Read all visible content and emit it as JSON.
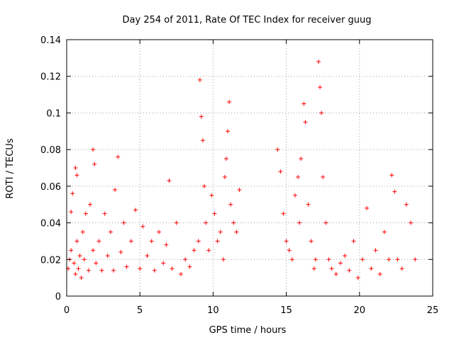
{
  "chart_data": {
    "type": "scatter",
    "title": "Day 254 of 2011, Rate Of TEC Index for receiver guug",
    "xlabel": "GPS time / hours",
    "ylabel": "ROTI / TECUs",
    "xlim": [
      0,
      25
    ],
    "ylim": [
      0,
      0.14
    ],
    "xticks": [
      0,
      5,
      10,
      15,
      20,
      25
    ],
    "xtick_labels": [
      "0",
      "5",
      "10",
      "15",
      "20",
      "25"
    ],
    "yticks": [
      0,
      0.02,
      0.04,
      0.06,
      0.08,
      0.1,
      0.12,
      0.14
    ],
    "ytick_labels": [
      "0",
      "0.02",
      "0.04",
      "0.06",
      "0.08",
      "0.1",
      "0.12",
      "0.14"
    ],
    "grid": true,
    "marker": "+",
    "color": "#ff0000",
    "series": [
      {
        "x": [
          0.1,
          0.2,
          0.3,
          0.3,
          0.4,
          0.5,
          0.6,
          0.6,
          0.7,
          0.7,
          0.8,
          0.9,
          1.0,
          1.1,
          1.2,
          1.3,
          1.5,
          1.6,
          1.8,
          1.8,
          1.9,
          2.0,
          2.2,
          2.4,
          2.6,
          2.8,
          3.0,
          3.2,
          3.3,
          3.5,
          3.7,
          3.9,
          4.1,
          4.4,
          4.7,
          5.0,
          5.2,
          5.5,
          5.8,
          6.0,
          6.3,
          6.6,
          6.8,
          7.0,
          7.2,
          7.5,
          7.8,
          8.1,
          8.4,
          8.7,
          9.0,
          9.1,
          9.2,
          9.3,
          9.4,
          9.5,
          9.7,
          9.9,
          10.1,
          10.3,
          10.5,
          10.7,
          10.8,
          10.9,
          11.0,
          11.1,
          11.2,
          11.4,
          11.6,
          11.8
        ],
        "y": [
          0.015,
          0.02,
          0.046,
          0.025,
          0.056,
          0.018,
          0.07,
          0.012,
          0.066,
          0.03,
          0.015,
          0.022,
          0.01,
          0.035,
          0.02,
          0.045,
          0.014,
          0.05,
          0.08,
          0.025,
          0.072,
          0.018,
          0.03,
          0.014,
          0.045,
          0.022,
          0.035,
          0.014,
          0.058,
          0.076,
          0.024,
          0.04,
          0.016,
          0.03,
          0.047,
          0.015,
          0.038,
          0.022,
          0.03,
          0.014,
          0.035,
          0.018,
          0.028,
          0.063,
          0.015,
          0.04,
          0.012,
          0.02,
          0.016,
          0.025,
          0.03,
          0.118,
          0.098,
          0.085,
          0.06,
          0.04,
          0.025,
          0.055,
          0.045,
          0.03,
          0.035,
          0.02,
          0.065,
          0.075,
          0.09,
          0.106,
          0.05,
          0.04,
          0.035,
          0.058
        ]
      },
      {
        "x": [
          14.4,
          14.6,
          14.8,
          15.0,
          15.2,
          15.4,
          15.6,
          15.8,
          15.9,
          16.0,
          16.2,
          16.3,
          16.5,
          16.7,
          16.9,
          17.0,
          17.2,
          17.3,
          17.4,
          17.5,
          17.7,
          17.9,
          18.1,
          18.4,
          18.7,
          19.0,
          19.3,
          19.6,
          19.9,
          20.2,
          20.5,
          20.8,
          21.1,
          21.4,
          21.7,
          22.0,
          22.2,
          22.4,
          22.6,
          22.9,
          23.2,
          23.5,
          23.8
        ],
        "y": [
          0.08,
          0.068,
          0.045,
          0.03,
          0.025,
          0.02,
          0.055,
          0.065,
          0.04,
          0.075,
          0.105,
          0.095,
          0.05,
          0.03,
          0.015,
          0.02,
          0.128,
          0.114,
          0.1,
          0.065,
          0.04,
          0.02,
          0.015,
          0.012,
          0.018,
          0.022,
          0.014,
          0.03,
          0.01,
          0.02,
          0.048,
          0.015,
          0.025,
          0.012,
          0.035,
          0.02,
          0.066,
          0.057,
          0.02,
          0.015,
          0.05,
          0.04,
          0.02
        ]
      }
    ]
  }
}
